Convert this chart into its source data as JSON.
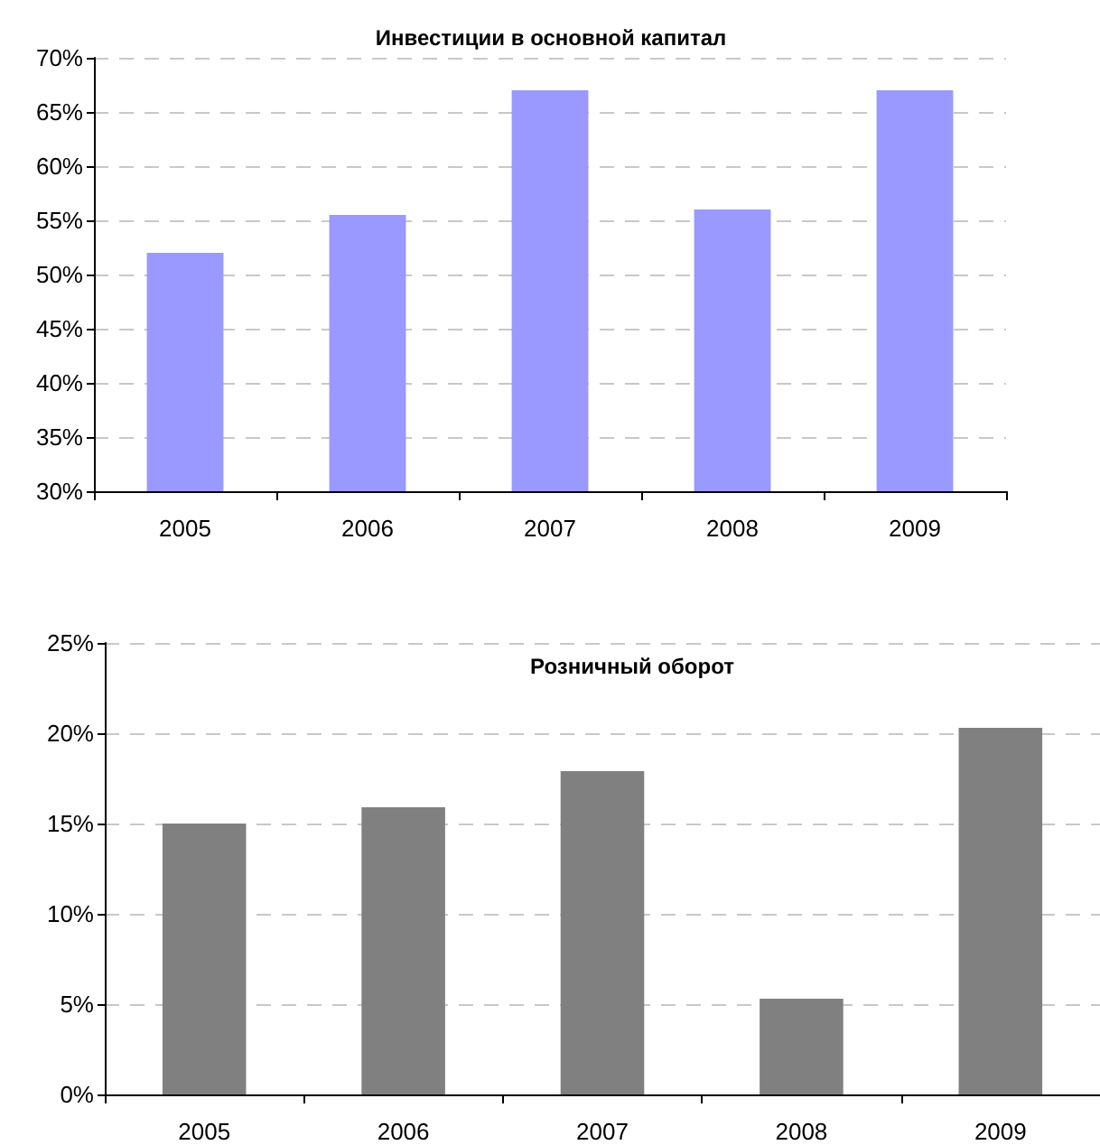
{
  "chart_data": [
    {
      "type": "bar",
      "title": "Инвестиции в основной капитал",
      "categories": [
        "2005",
        "2006",
        "2007",
        "2008",
        "2009"
      ],
      "values": [
        52,
        55.5,
        67,
        56,
        67
      ],
      "color": "#9999ff",
      "ylim": [
        30,
        70
      ],
      "yticks": [
        {
          "value": 30,
          "label": "30%"
        },
        {
          "value": 35,
          "label": "35%"
        },
        {
          "value": 40,
          "label": "40%"
        },
        {
          "value": 45,
          "label": "45%"
        },
        {
          "value": 50,
          "label": "50%"
        },
        {
          "value": 55,
          "label": "55%"
        },
        {
          "value": 60,
          "label": "60%"
        },
        {
          "value": 65,
          "label": "65%"
        },
        {
          "value": 70,
          "label": "70%"
        }
      ],
      "grid": "y"
    },
    {
      "type": "bar",
      "title": "Розничный оборот",
      "categories": [
        "2005",
        "2006",
        "2007",
        "2008",
        "2009"
      ],
      "values": [
        15,
        15.9,
        17.9,
        5.3,
        20.3
      ],
      "color": "#808080",
      "ylim": [
        0,
        25
      ],
      "yticks": [
        {
          "value": 0,
          "label": "0%"
        },
        {
          "value": 5,
          "label": "5%"
        },
        {
          "value": 10,
          "label": "10%"
        },
        {
          "value": 15,
          "label": "15%"
        },
        {
          "value": 20,
          "label": "20%"
        },
        {
          "value": 25,
          "label": "25%"
        }
      ],
      "grid": "y"
    }
  ]
}
